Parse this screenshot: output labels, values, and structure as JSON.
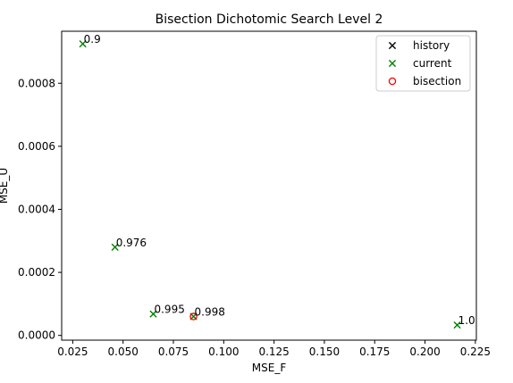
{
  "chart_data": {
    "type": "scatter",
    "title": "Bisection Dichotomic Search Level 2",
    "xlabel": "MSE_F",
    "ylabel": "MSE_U",
    "xlim": [
      0.0195,
      0.2255
    ],
    "ylim": [
      -1.5e-05,
      0.000965
    ],
    "x_ticks": [
      "0.025",
      "0.050",
      "0.075",
      "0.100",
      "0.125",
      "0.150",
      "0.175",
      "0.200",
      "0.225"
    ],
    "x_tick_values": [
      0.025,
      0.05,
      0.075,
      0.1,
      0.125,
      0.15,
      0.175,
      0.2,
      0.225
    ],
    "y_ticks": [
      "0.0000",
      "0.0002",
      "0.0004",
      "0.0006",
      "0.0008"
    ],
    "y_tick_values": [
      0.0,
      0.0002,
      0.0004,
      0.0006,
      0.0008
    ],
    "grid": false,
    "legend_position": "top-right",
    "series": [
      {
        "name": "history",
        "marker": "x",
        "color": "#000000",
        "points": []
      },
      {
        "name": "current",
        "marker": "x",
        "color": "#008000",
        "points": [
          {
            "x": 0.03,
            "y": 0.000925
          },
          {
            "x": 0.046,
            "y": 0.00028
          },
          {
            "x": 0.065,
            "y": 6.8e-05
          },
          {
            "x": 0.085,
            "y": 6e-05
          },
          {
            "x": 0.216,
            "y": 3.3e-05
          }
        ]
      },
      {
        "name": "bisection",
        "marker": "o",
        "color": "#ff0000",
        "points": [
          {
            "x": 0.085,
            "y": 6e-05
          }
        ]
      }
    ],
    "annotations": [
      {
        "text": "0.9",
        "x": 0.03,
        "y": 0.000925
      },
      {
        "text": "0.976",
        "x": 0.046,
        "y": 0.00028
      },
      {
        "text": "0.995",
        "x": 0.065,
        "y": 6.8e-05
      },
      {
        "text": "0.998",
        "x": 0.085,
        "y": 6e-05
      },
      {
        "text": "1.0",
        "x": 0.216,
        "y": 3.3e-05
      }
    ]
  }
}
